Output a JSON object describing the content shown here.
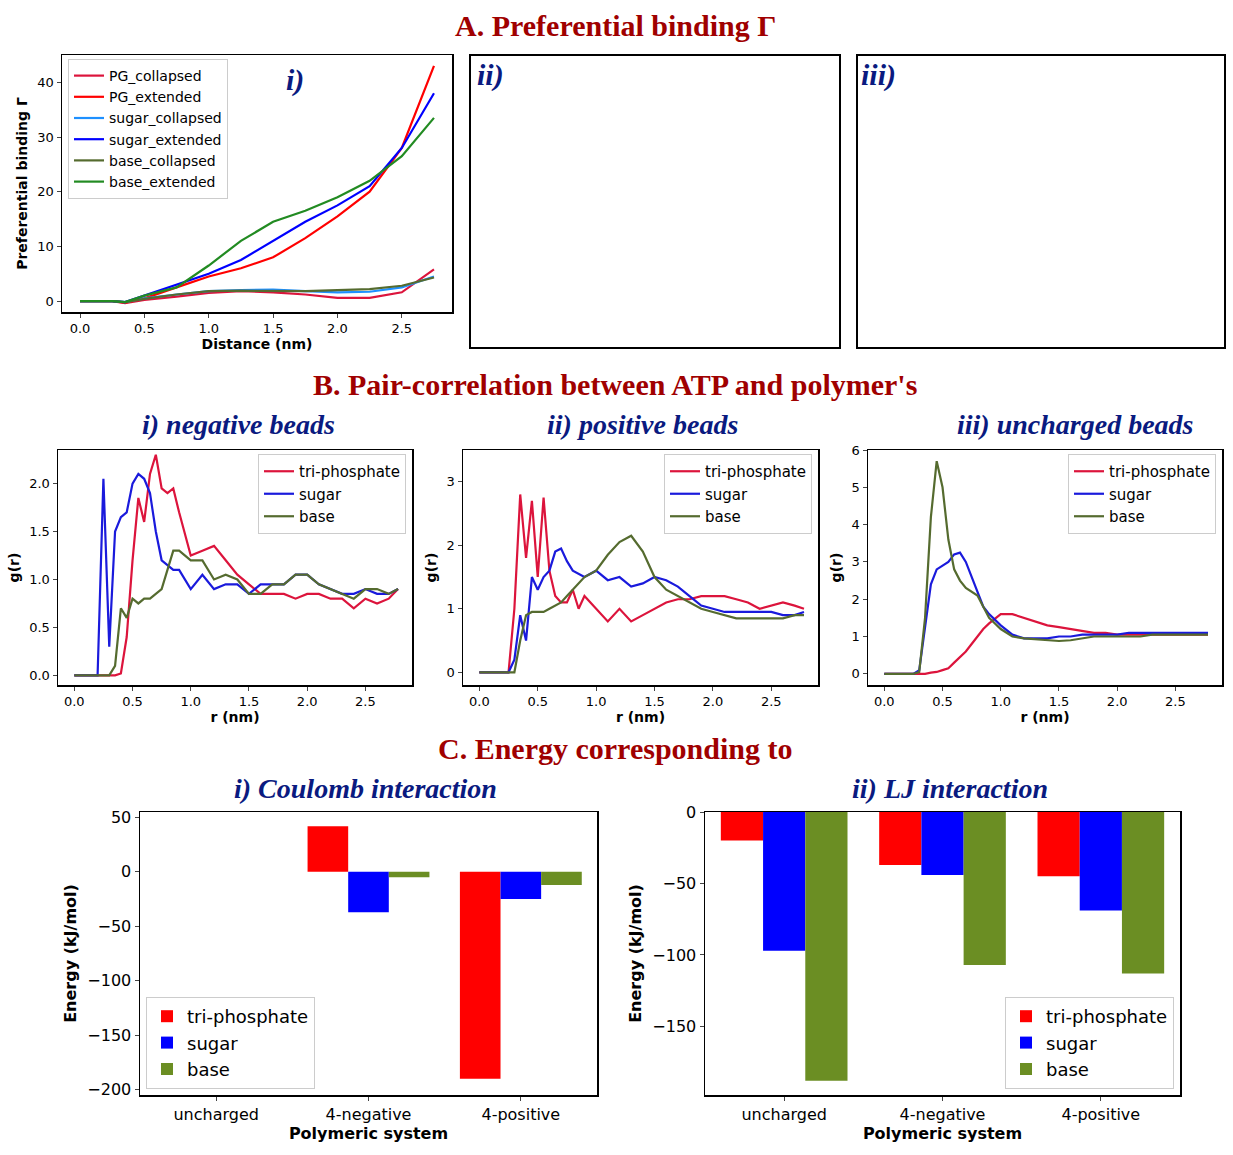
{
  "sections": [
    "A. Preferential binding Γ",
    "B. Pair-correlation between ATP and polymer's",
    "C. Energy corresponding to"
  ],
  "chart_data": [
    {
      "type": "line",
      "title": "i)",
      "x_label": "Distance (nm)",
      "y_label": "Preferential binding Γ",
      "x": [
        0,
        0.25,
        0.35,
        0.5,
        0.75,
        1.0,
        1.25,
        1.5,
        1.75,
        2.0,
        2.25,
        2.5,
        2.75
      ],
      "series": [
        {
          "name": "PG_collapsed",
          "color": "#dc143c",
          "values": [
            0,
            0,
            -0.4,
            0.2,
            0.8,
            1.5,
            1.8,
            1.6,
            1.2,
            0.6,
            0.6,
            1.6,
            5.8
          ]
        },
        {
          "name": "PG_extended",
          "color": "#ff0000",
          "values": [
            0,
            0,
            -0.3,
            0.5,
            2.5,
            4.5,
            6,
            8,
            11.5,
            15.5,
            20,
            28,
            43
          ]
        },
        {
          "name": "sugar_collapsed",
          "color": "#1e90ff",
          "values": [
            0,
            0,
            -0.2,
            0.5,
            1.2,
            1.8,
            2.0,
            2.1,
            1.8,
            1.6,
            1.7,
            2.5,
            4.5
          ]
        },
        {
          "name": "sugar_extended",
          "color": "#0000ff",
          "values": [
            0,
            0,
            -0.2,
            1,
            3,
            5,
            7.5,
            11,
            14.5,
            17.5,
            21,
            28,
            38
          ]
        },
        {
          "name": "base_collapsed",
          "color": "#556b2f",
          "values": [
            0,
            0,
            -0.2,
            0.4,
            1.2,
            1.8,
            1.9,
            1.8,
            1.8,
            2.0,
            2.2,
            2.8,
            4.3
          ]
        },
        {
          "name": "base_extended",
          "color": "#228b22",
          "values": [
            0,
            0,
            -0.2,
            1,
            2.5,
            6.5,
            11,
            14.5,
            16.5,
            19,
            22,
            26.5,
            33.5
          ]
        }
      ],
      "xlim": [
        -0.14,
        2.89
      ],
      "ylim": [
        -2,
        45
      ],
      "xticks": [
        {
          "value": 0,
          "label": "0.0"
        },
        0.5,
        {
          "value": 1,
          "label": "1.0"
        },
        1.5,
        {
          "value": 2,
          "label": "2.0"
        },
        2.5
      ],
      "yticks": [
        0,
        10,
        20,
        30,
        40
      ],
      "grid": false,
      "legend": "upper left"
    },
    {
      "type": "image",
      "title": "ii)"
    },
    {
      "type": "image",
      "title": "iii)"
    },
    {
      "type": "line",
      "title": "i) negative beads",
      "x_label": "r (nm)",
      "y_label": "g(r)",
      "x": [
        0,
        0.2,
        0.25,
        0.3,
        0.35,
        0.4,
        0.45,
        0.5,
        0.55,
        0.6,
        0.65,
        0.7,
        0.75,
        0.8,
        0.85,
        0.9,
        1.0,
        1.1,
        1.2,
        1.3,
        1.4,
        1.5,
        1.6,
        1.7,
        1.8,
        1.9,
        2.0,
        2.1,
        2.2,
        2.3,
        2.4,
        2.5,
        2.6,
        2.7,
        2.78
      ],
      "series": [
        {
          "name": "tri-phosphate",
          "color": "#dc143c",
          "values": [
            0,
            0,
            0,
            0,
            0,
            0.02,
            0.4,
            1.2,
            1.85,
            1.6,
            2.1,
            2.3,
            1.95,
            1.9,
            1.95,
            1.7,
            1.25,
            1.3,
            1.35,
            1.2,
            1.05,
            0.95,
            0.85,
            0.85,
            0.85,
            0.8,
            0.85,
            0.85,
            0.8,
            0.8,
            0.7,
            0.8,
            0.75,
            0.8,
            0.9
          ]
        },
        {
          "name": "sugar",
          "color": "#1a1adc",
          "values": [
            0,
            0,
            2.05,
            0.3,
            1.5,
            1.65,
            1.7,
            2.0,
            2.1,
            2.05,
            1.9,
            1.5,
            1.2,
            1.15,
            1.1,
            1.1,
            0.9,
            1.05,
            0.9,
            0.95,
            0.95,
            0.85,
            0.95,
            0.95,
            0.95,
            1.05,
            1.05,
            0.95,
            0.9,
            0.85,
            0.85,
            0.9,
            0.85,
            0.85,
            0.9
          ]
        },
        {
          "name": "base",
          "color": "#556b2f",
          "values": [
            0,
            0,
            0,
            0,
            0.1,
            0.7,
            0.6,
            0.8,
            0.75,
            0.8,
            0.8,
            0.85,
            0.9,
            1.1,
            1.3,
            1.3,
            1.2,
            1.2,
            1.0,
            1.05,
            1.0,
            0.85,
            0.85,
            0.95,
            0.95,
            1.05,
            1.05,
            0.95,
            0.9,
            0.85,
            0.8,
            0.9,
            0.9,
            0.85,
            0.9
          ]
        }
      ],
      "xlim": [
        -0.14,
        2.9
      ],
      "ylim": [
        -0.1,
        2.35
      ],
      "xticks": [
        {
          "value": 0,
          "label": "0.0"
        },
        0.5,
        {
          "value": 1,
          "label": "1.0"
        },
        1.5,
        {
          "value": 2,
          "label": "2.0"
        },
        2.5
      ],
      "yticks": [
        {
          "value": 0,
          "label": "0.0"
        },
        0.5,
        {
          "value": 1,
          "label": "1.0"
        },
        1.5,
        {
          "value": 2,
          "label": "2.0"
        }
      ],
      "grid": false,
      "legend": "upper right"
    },
    {
      "type": "line",
      "title": "ii) positive beads",
      "x_label": "r (nm)",
      "y_label": "g(r)",
      "x": [
        0,
        0.2,
        0.25,
        0.3,
        0.35,
        0.4,
        0.45,
        0.5,
        0.55,
        0.6,
        0.65,
        0.7,
        0.75,
        0.8,
        0.85,
        0.9,
        1.0,
        1.1,
        1.2,
        1.3,
        1.4,
        1.5,
        1.6,
        1.7,
        1.8,
        1.9,
        2.0,
        2.1,
        2.2,
        2.3,
        2.4,
        2.5,
        2.6,
        2.7,
        2.78
      ],
      "series": [
        {
          "name": "tri-phosphate",
          "color": "#dc143c",
          "values": [
            0,
            0,
            0,
            1.0,
            2.8,
            1.8,
            2.7,
            1.5,
            2.75,
            1.6,
            1.2,
            1.1,
            1.1,
            1.3,
            1.0,
            1.2,
            1.0,
            0.8,
            1.0,
            0.8,
            0.9,
            1.0,
            1.1,
            1.15,
            1.15,
            1.2,
            1.2,
            1.2,
            1.15,
            1.1,
            1.0,
            1.05,
            1.1,
            1.05,
            1.0
          ]
        },
        {
          "name": "sugar",
          "color": "#1a1adc",
          "values": [
            0,
            0,
            0,
            0.2,
            0.9,
            0.5,
            1.5,
            1.3,
            1.5,
            1.6,
            1.9,
            1.95,
            1.75,
            1.6,
            1.55,
            1.5,
            1.6,
            1.45,
            1.5,
            1.35,
            1.4,
            1.5,
            1.45,
            1.35,
            1.2,
            1.05,
            1.0,
            0.95,
            0.95,
            0.95,
            0.95,
            0.95,
            0.9,
            0.9,
            0.95
          ]
        },
        {
          "name": "base",
          "color": "#556b2f",
          "values": [
            0,
            0,
            0,
            0,
            0.5,
            0.9,
            0.95,
            0.95,
            0.95,
            1.0,
            1.05,
            1.1,
            1.2,
            1.3,
            1.4,
            1.5,
            1.6,
            1.85,
            2.05,
            2.15,
            1.9,
            1.5,
            1.3,
            1.2,
            1.1,
            1.0,
            0.95,
            0.9,
            0.85,
            0.85,
            0.85,
            0.85,
            0.85,
            0.9,
            0.9
          ]
        }
      ],
      "xlim": [
        -0.14,
        2.9
      ],
      "ylim": [
        -0.2,
        3.5
      ],
      "xticks": [
        {
          "value": 0,
          "label": "0.0"
        },
        0.5,
        {
          "value": 1,
          "label": "1.0"
        },
        1.5,
        {
          "value": 2,
          "label": "2.0"
        },
        2.5
      ],
      "yticks": [
        0,
        1,
        2,
        3
      ],
      "grid": false,
      "legend": "upper right"
    },
    {
      "type": "line",
      "title": "iii) uncharged beads",
      "x_label": "r (nm)",
      "y_label": "g(r)",
      "x": [
        0,
        0.2,
        0.25,
        0.3,
        0.35,
        0.4,
        0.45,
        0.5,
        0.55,
        0.6,
        0.65,
        0.7,
        0.75,
        0.8,
        0.85,
        0.9,
        1.0,
        1.1,
        1.2,
        1.3,
        1.4,
        1.5,
        1.6,
        1.7,
        1.8,
        1.9,
        2.0,
        2.1,
        2.2,
        2.3,
        2.4,
        2.5,
        2.6,
        2.7,
        2.78
      ],
      "series": [
        {
          "name": "tri-phosphate",
          "color": "#dc143c",
          "values": [
            0,
            0,
            0,
            0,
            0,
            0.03,
            0.05,
            0.1,
            0.15,
            0.3,
            0.45,
            0.6,
            0.8,
            1.0,
            1.2,
            1.35,
            1.6,
            1.6,
            1.5,
            1.4,
            1.3,
            1.25,
            1.2,
            1.15,
            1.1,
            1.1,
            1.05,
            1.05,
            1.05,
            1.05,
            1.05,
            1.05,
            1.05,
            1.05,
            1.05
          ]
        },
        {
          "name": "sugar",
          "color": "#1a1adc",
          "values": [
            0,
            0,
            0,
            0.1,
            1.2,
            2.4,
            2.8,
            2.9,
            3.0,
            3.2,
            3.25,
            3.0,
            2.6,
            2.2,
            1.8,
            1.6,
            1.3,
            1.05,
            0.95,
            0.95,
            0.95,
            1.0,
            1.0,
            1.05,
            1.05,
            1.05,
            1.05,
            1.1,
            1.1,
            1.1,
            1.1,
            1.1,
            1.1,
            1.1,
            1.1
          ]
        },
        {
          "name": "base",
          "color": "#556b2f",
          "values": [
            0,
            0,
            0,
            0.05,
            1.5,
            4.2,
            5.7,
            5.0,
            3.6,
            2.8,
            2.5,
            2.3,
            2.2,
            2.1,
            1.8,
            1.5,
            1.2,
            1.0,
            0.95,
            0.92,
            0.9,
            0.88,
            0.9,
            0.95,
            1.0,
            1.0,
            1.0,
            1.0,
            1.0,
            1.05,
            1.05,
            1.05,
            1.05,
            1.05,
            1.05
          ]
        }
      ],
      "xlim": [
        -0.14,
        2.9
      ],
      "ylim": [
        -0.3,
        6
      ],
      "xticks": [
        {
          "value": 0,
          "label": "0.0"
        },
        0.5,
        {
          "value": 1,
          "label": "1.0"
        },
        1.5,
        {
          "value": 2,
          "label": "2.0"
        },
        2.5
      ],
      "yticks": [
        0,
        1,
        2,
        3,
        4,
        5,
        6
      ],
      "grid": false,
      "legend": "upper right"
    },
    {
      "type": "bar",
      "title": "i) Coulomb interaction",
      "x_label": "Polymeric system",
      "y_label": "Energy (kJ/mol)",
      "categories": [
        "uncharged",
        "4-negative",
        "4-positive"
      ],
      "series": [
        {
          "name": "tri-phosphate",
          "color": "#ff0000",
          "values": [
            0,
            42,
            -190
          ]
        },
        {
          "name": "sugar",
          "color": "#0000ff",
          "values": [
            0,
            -37,
            -25
          ]
        },
        {
          "name": "base",
          "color": "#6b8e23",
          "values": [
            0,
            -5,
            -12
          ]
        }
      ],
      "ylim": [
        -205,
        55
      ],
      "yticks": [
        {
          "value": -200,
          "label": "−200"
        },
        {
          "value": -150,
          "label": "−150"
        },
        {
          "value": -100,
          "label": "−100"
        },
        {
          "value": -50,
          "label": "−50"
        },
        0,
        50
      ],
      "grid": false,
      "legend": "lower left"
    },
    {
      "type": "bar",
      "title": "ii) LJ interaction",
      "x_label": "Polymeric system",
      "y_label": "Energy (kJ/mol)",
      "categories": [
        "uncharged",
        "4-negative",
        "4-positive"
      ],
      "series": [
        {
          "name": "tri-phosphate",
          "color": "#ff0000",
          "values": [
            -20,
            -37,
            -45
          ]
        },
        {
          "name": "sugar",
          "color": "#0000ff",
          "values": [
            -97,
            -44,
            -69
          ]
        },
        {
          "name": "base",
          "color": "#6b8e23",
          "values": [
            -188,
            -107,
            -113
          ]
        }
      ],
      "ylim": [
        -198,
        0
      ],
      "yticks": [
        {
          "value": -150,
          "label": "−150"
        },
        {
          "value": -100,
          "label": "−100"
        },
        {
          "value": -50,
          "label": "−50"
        },
        0
      ],
      "grid": false,
      "legend": "lower right"
    }
  ]
}
